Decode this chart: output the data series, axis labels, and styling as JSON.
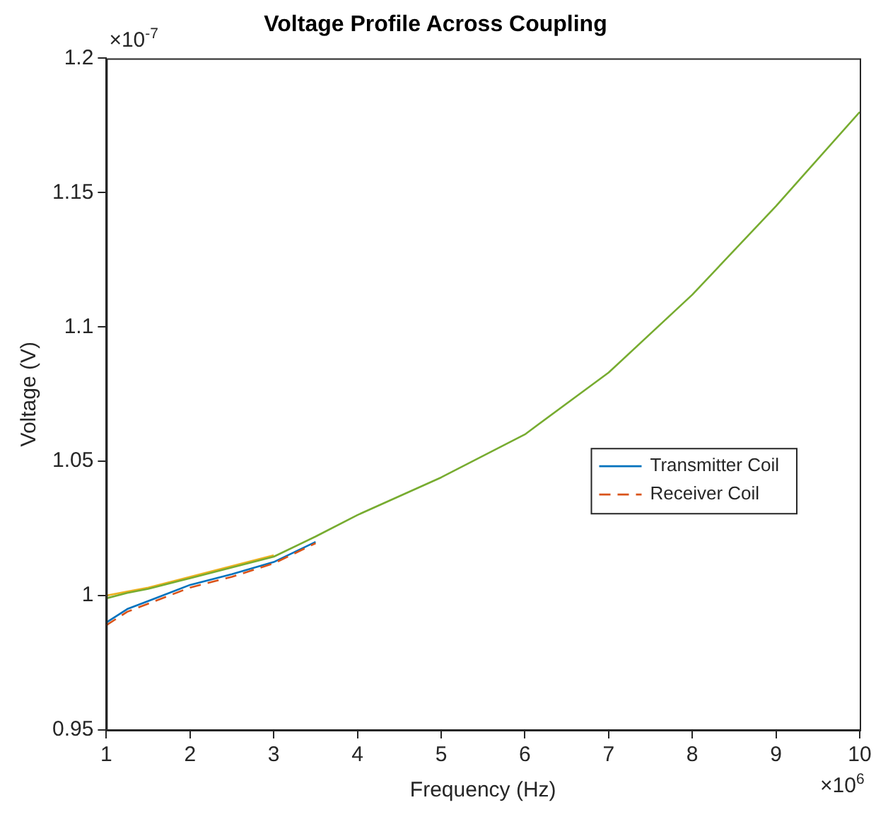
{
  "chart_data": {
    "type": "line",
    "title": "Voltage Profile Across Coupling",
    "xlabel": "Frequency (Hz)",
    "ylabel": "Voltage (V)",
    "x": [
      1,
      1.25,
      1.5,
      2,
      2.5,
      3,
      3.5,
      4,
      5,
      6,
      7,
      8,
      9,
      10
    ],
    "series": [
      {
        "name": "Transmitter Coil",
        "color": "#0072bd",
        "line_style": "solid",
        "values": [
          0.99,
          0.995,
          0.998,
          1.004,
          1.008,
          1.0125,
          1.02,
          null,
          null,
          null,
          null,
          null,
          null,
          null
        ]
      },
      {
        "name": "Receiver Coil",
        "color": "#d95319",
        "line_style": "dashed",
        "values": [
          0.989,
          0.994,
          0.997,
          1.003,
          1.007,
          1.012,
          1.0195,
          null,
          null,
          null,
          null,
          null,
          null,
          null
        ]
      },
      {
        "color": "#edb120",
        "line_style": "solid",
        "values": [
          1.0,
          1.0015,
          1.003,
          1.007,
          1.011,
          1.015,
          null,
          null,
          null,
          null,
          null,
          null,
          null,
          null
        ]
      },
      {
        "color": "#77ac30",
        "line_style": "solid",
        "values": [
          0.999,
          1.001,
          1.0025,
          1.0065,
          1.0105,
          1.0145,
          1.022,
          1.03,
          1.044,
          1.06,
          1.083,
          1.112,
          1.145,
          1.18
        ]
      }
    ],
    "xlim": [
      1,
      10
    ],
    "xticks": [
      1,
      2,
      3,
      4,
      5,
      6,
      7,
      8,
      9,
      10
    ],
    "ylim": [
      0.95,
      1.2
    ],
    "yticks": [
      0.95,
      1,
      1.05,
      1.1,
      1.15,
      1.2
    ],
    "grid": false,
    "legend": "right",
    "marker": "none",
    "annotations": [
      "×10$^{-7}$",
      "×10$^{6}$"
    ]
  }
}
